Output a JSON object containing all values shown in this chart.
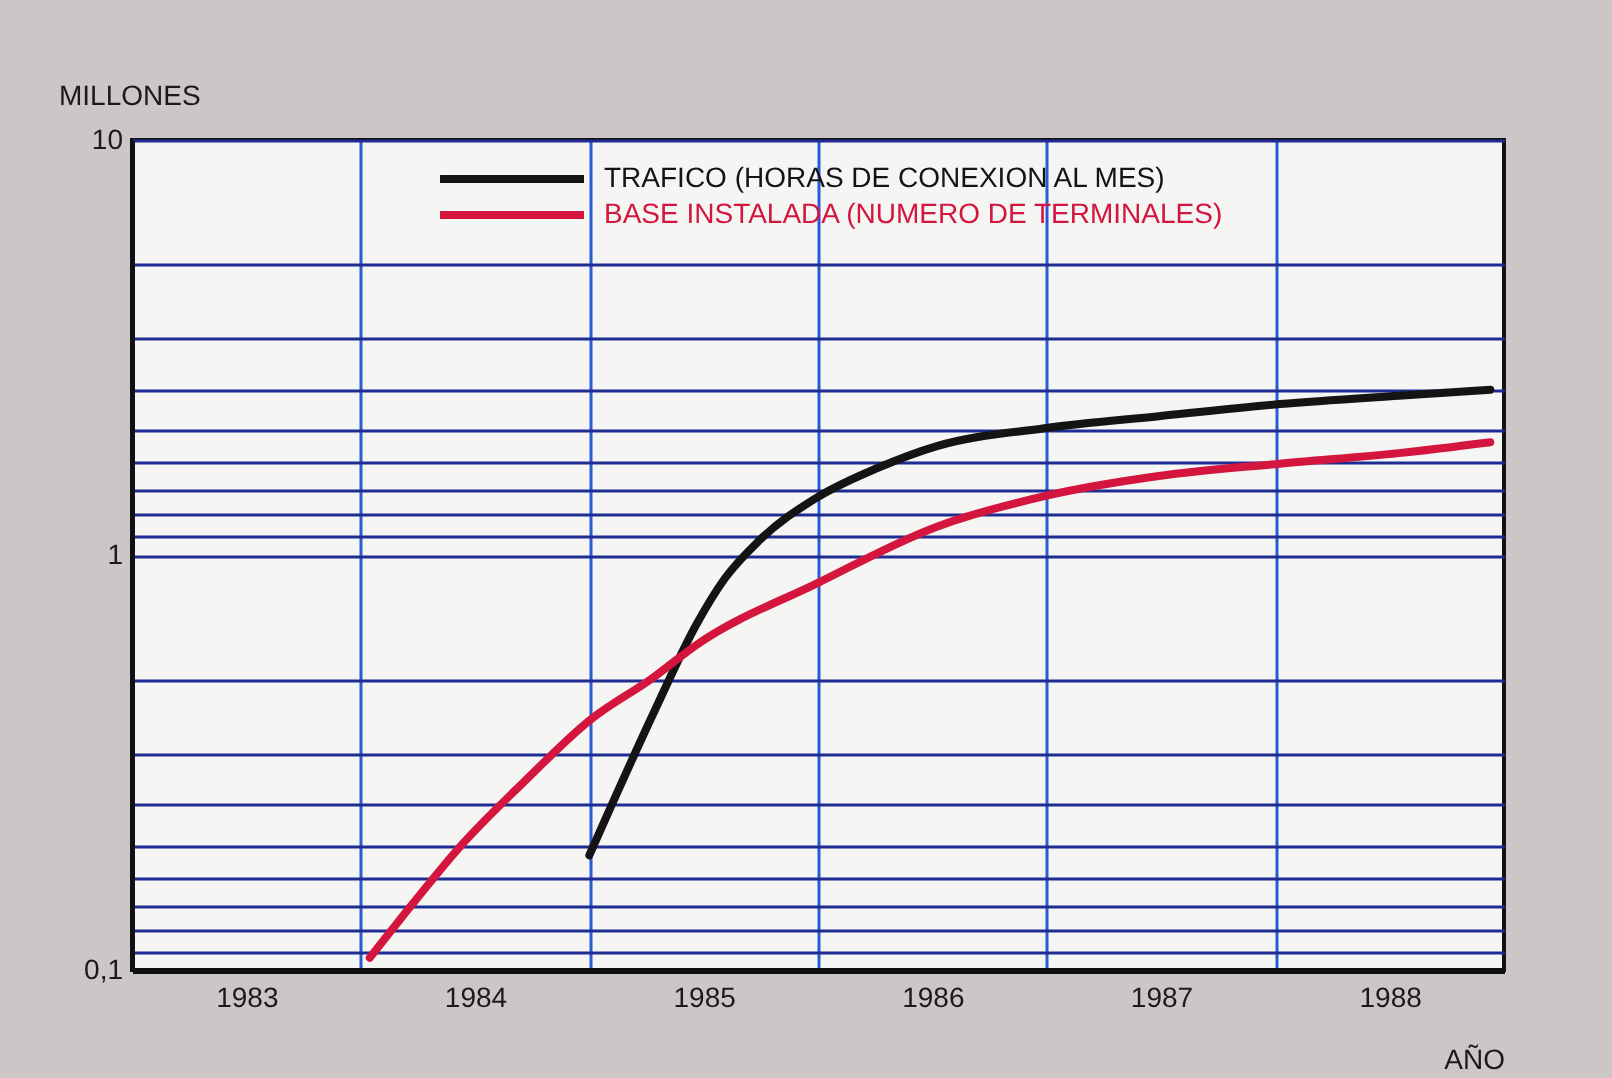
{
  "chart_data": {
    "type": "line",
    "xlabel": "AÑO",
    "ylabel": "MILLONES",
    "log": true,
    "grid": true,
    "legend": "top",
    "xlim": [
      1982.5,
      1988.5
    ],
    "xticks": [
      1983,
      {
        "value": 1983.5,
        "label": null
      },
      1984,
      {
        "value": 1984.5,
        "label": null
      },
      1985,
      {
        "value": 1985.5,
        "label": null
      },
      1986,
      {
        "value": 1986.5,
        "label": null
      },
      1987,
      {
        "value": 1987.5,
        "label": null
      },
      1988
    ],
    "ylim": [
      0.1,
      10
    ],
    "yticks": [
      {
        "value": 0.1,
        "label": "0,1"
      },
      {
        "value": 0.111,
        "label": null
      },
      {
        "value": 0.125,
        "label": null
      },
      {
        "value": 0.143,
        "label": null
      },
      {
        "value": 0.167,
        "label": null
      },
      {
        "value": 0.2,
        "label": null
      },
      {
        "value": 0.25,
        "label": null
      },
      {
        "value": 0.333,
        "label": null
      },
      {
        "value": 0.5,
        "label": null
      },
      1,
      {
        "value": 1.11,
        "label": null
      },
      {
        "value": 1.25,
        "label": null
      },
      {
        "value": 1.43,
        "label": null
      },
      {
        "value": 1.67,
        "label": null
      },
      {
        "value": 2,
        "label": null
      },
      {
        "value": 2.5,
        "label": null
      },
      {
        "value": 3.33,
        "label": null
      },
      {
        "value": 5,
        "label": null
      },
      10
    ],
    "series": [
      {
        "name": "TRAFICO (HORAS DE CONEXION AL MES)",
        "color": "#141414",
        "x": [
          1984.5,
          1984.78,
          1984.97,
          1985.09,
          1985.24,
          1985.5,
          1985.76,
          1986.02,
          1986.49,
          1986.99,
          1987.52,
          1988.04,
          1988.44
        ],
        "values": [
          0.189,
          0.415,
          0.683,
          0.874,
          1.08,
          1.38,
          1.62,
          1.83,
          2.02,
          2.16,
          2.31,
          2.42,
          2.5
        ]
      },
      {
        "name": "BASE INSTALADA (NUMERO DE TERMINALES)",
        "color": "#d4163f",
        "x": [
          1983.54,
          1983.73,
          1983.93,
          1984.22,
          1984.5,
          1984.78,
          1984.97,
          1985.5,
          1986.02,
          1986.5,
          1986.99,
          1987.52,
          1988.04,
          1988.44
        ],
        "values": [
          0.107,
          0.145,
          0.197,
          0.286,
          0.399,
          0.507,
          0.608,
          0.857,
          1.17,
          1.39,
          1.55,
          1.66,
          1.76,
          1.87
        ]
      }
    ]
  }
}
